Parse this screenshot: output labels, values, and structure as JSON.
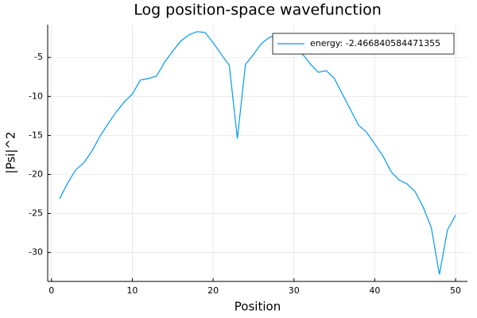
{
  "chart_data": {
    "type": "line",
    "title": "Log position-space wavefunction",
    "x_label": "Position",
    "y_label": "|Psi|^2",
    "x": [
      1,
      2,
      3,
      4,
      5,
      6,
      7,
      8,
      9,
      10,
      11,
      12,
      13,
      14,
      15,
      16,
      17,
      18,
      19,
      20,
      21,
      22,
      23,
      24,
      25,
      26,
      27,
      28,
      29,
      30,
      31,
      32,
      33,
      34,
      35,
      36,
      37,
      38,
      39,
      40,
      41,
      42,
      43,
      44,
      45,
      46,
      47,
      48,
      49,
      50
    ],
    "series": [
      {
        "name": "energy: -2.466840584471355",
        "color": "#009af9",
        "values": [
          -23.1,
          -21.1,
          -19.4,
          -18.5,
          -17.0,
          -15.1,
          -13.5,
          -12.0,
          -10.7,
          -9.7,
          -7.9,
          -7.7,
          -7.4,
          -5.6,
          -4.2,
          -2.9,
          -2.1,
          -1.7,
          -1.8,
          -3.1,
          -4.6,
          -6.0,
          -15.4,
          -5.9,
          -4.6,
          -3.2,
          -2.4,
          -2.2,
          -2.5,
          -3.5,
          -4.5,
          -5.8,
          -6.9,
          -6.7,
          -7.7,
          -9.7,
          -11.7,
          -13.7,
          -14.6,
          -16.1,
          -17.6,
          -19.6,
          -20.7,
          -21.2,
          -22.2,
          -24.2,
          -26.8,
          -32.8,
          -27.1,
          -25.2
        ]
      }
    ],
    "xlim": [
      -0.47,
      51.47
    ],
    "ylim": [
      -33.7,
      -0.8
    ],
    "xticks": [
      0,
      10,
      20,
      30,
      40,
      50
    ],
    "yticks": [
      -5,
      -10,
      -15,
      -20,
      -25,
      -30
    ],
    "grid": true,
    "legend_position": "top-right"
  }
}
